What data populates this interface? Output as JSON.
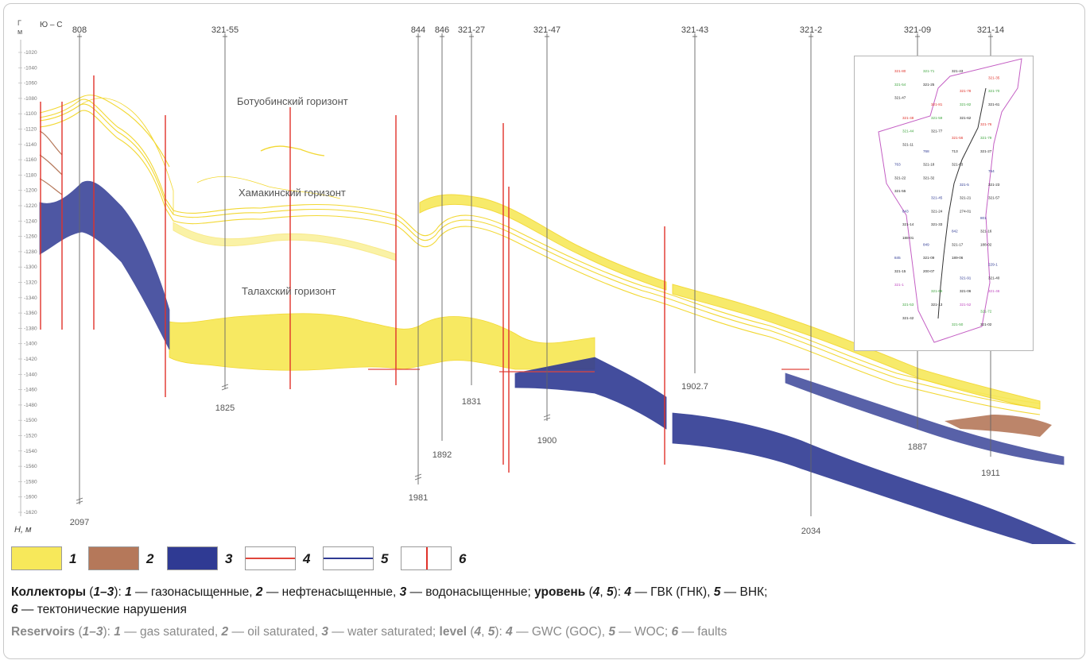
{
  "section": {
    "direction": "Ю – С",
    "axis_label_top": [
      "Г",
      "м"
    ],
    "depth_ticks": [
      "-1020",
      "-1040",
      "-1060",
      "-1080",
      "-1100",
      "-1120",
      "-1140",
      "-1160",
      "-1180",
      "-1200",
      "-1220",
      "-1240",
      "-1260",
      "-1280",
      "-1300",
      "-1320",
      "-1340",
      "-1360",
      "-1380",
      "-1400",
      "-1420",
      "-1440",
      "-1460",
      "-1480",
      "-1500",
      "-1520",
      "-1540",
      "-1560",
      "-1580",
      "-1600",
      "-1620"
    ],
    "depth_axis_label": "H, м",
    "wells": [
      {
        "name": "808",
        "td": "2097"
      },
      {
        "name": "321-55",
        "td": "1825"
      },
      {
        "name": "844",
        "td": "1981"
      },
      {
        "name": "846",
        "td": "1892"
      },
      {
        "name": "321-27",
        "td": "1831"
      },
      {
        "name": "321-47",
        "td": "1900"
      },
      {
        "name": "321-43",
        "td": "1902.7"
      },
      {
        "name": "321-2",
        "td": "2034"
      },
      {
        "name": "321-09",
        "td": "1887"
      },
      {
        "name": "321-14",
        "td": "1911"
      }
    ],
    "horizons": [
      {
        "name": "Ботуобинский горизонт"
      },
      {
        "name": "Хамакинский горизонт"
      },
      {
        "name": "Талахский горизонт"
      }
    ]
  },
  "inset_map": {
    "labels_red": [
      "321-80",
      "321-35",
      "321-78",
      "321-81",
      "321-48",
      "321-76",
      "321-56"
    ],
    "labels_blue": [
      "768",
      "763",
      "764",
      "321-5",
      "321-45",
      "843",
      "801",
      "842",
      "849",
      "845",
      "229-1",
      "321-91"
    ],
    "labels_green": [
      "321-66",
      "321-53",
      "321-72",
      "321-50",
      "321-71",
      "321-54",
      "321-70",
      "321-82",
      "321-59",
      "321-44",
      "321-79"
    ],
    "labels_black": [
      "713",
      "321-18",
      "321-22",
      "321-23",
      "321-21",
      "321-24",
      "321-14",
      "321-16",
      "321-17",
      "321-09",
      "321-15",
      "321-40",
      "321-06",
      "321-13",
      "321-42",
      "321-02",
      "321-43",
      "321-25",
      "321-47",
      "321-61",
      "321-62",
      "321-77",
      "321-11",
      "321-27",
      "321-63",
      "321-32",
      "321-55",
      "321-57",
      "274-01",
      "321-33",
      "188-01",
      "188-02",
      "189-06",
      "200-07"
    ],
    "labels_magenta": [
      "321-1",
      "321-46",
      "321-52"
    ]
  },
  "legend": [
    {
      "num": "1",
      "kind": "fill",
      "color": "#f7e85a"
    },
    {
      "num": "2",
      "kind": "fill",
      "color": "#b5785a"
    },
    {
      "num": "3",
      "kind": "fill",
      "color": "#2f3a93"
    },
    {
      "num": "4",
      "kind": "line",
      "color": "#e0463c"
    },
    {
      "num": "5",
      "kind": "line",
      "color": "#2f3a93"
    },
    {
      "num": "6",
      "kind": "vline",
      "color": "#e0322a"
    }
  ],
  "caption_ru": {
    "bold1": "Коллекторы",
    "range1": "1–3",
    "n1": "1",
    "t1": " — газонасыщенные, ",
    "n2": "2",
    "t2": " — нефтенасыщенные, ",
    "n3": "3",
    "t3": " — водонасыщенные; ",
    "bold2": "уровень",
    "n4a": "4",
    "n5a": "5",
    "n4": "4",
    "t4": " — ГВК (ГНК), ",
    "n5": "5",
    "t5": " — ВНК;",
    "n6": "6",
    "t6": " — тектонические нарушения"
  },
  "caption_en": {
    "bold1": "Reservoirs",
    "range1": "1–3",
    "n1": "1",
    "t1": " — gas saturated, ",
    "n2": "2",
    "t2": " — oil saturated, ",
    "n3": "3",
    "t3": " — water saturated; ",
    "bold2": "level",
    "n4a": "4",
    "n5a": "5",
    "n4": "4",
    "t4": " — GWC (GOC), ",
    "n5": "5",
    "t5": " — WOC; ",
    "n6": "6",
    "t6": " — faults"
  }
}
